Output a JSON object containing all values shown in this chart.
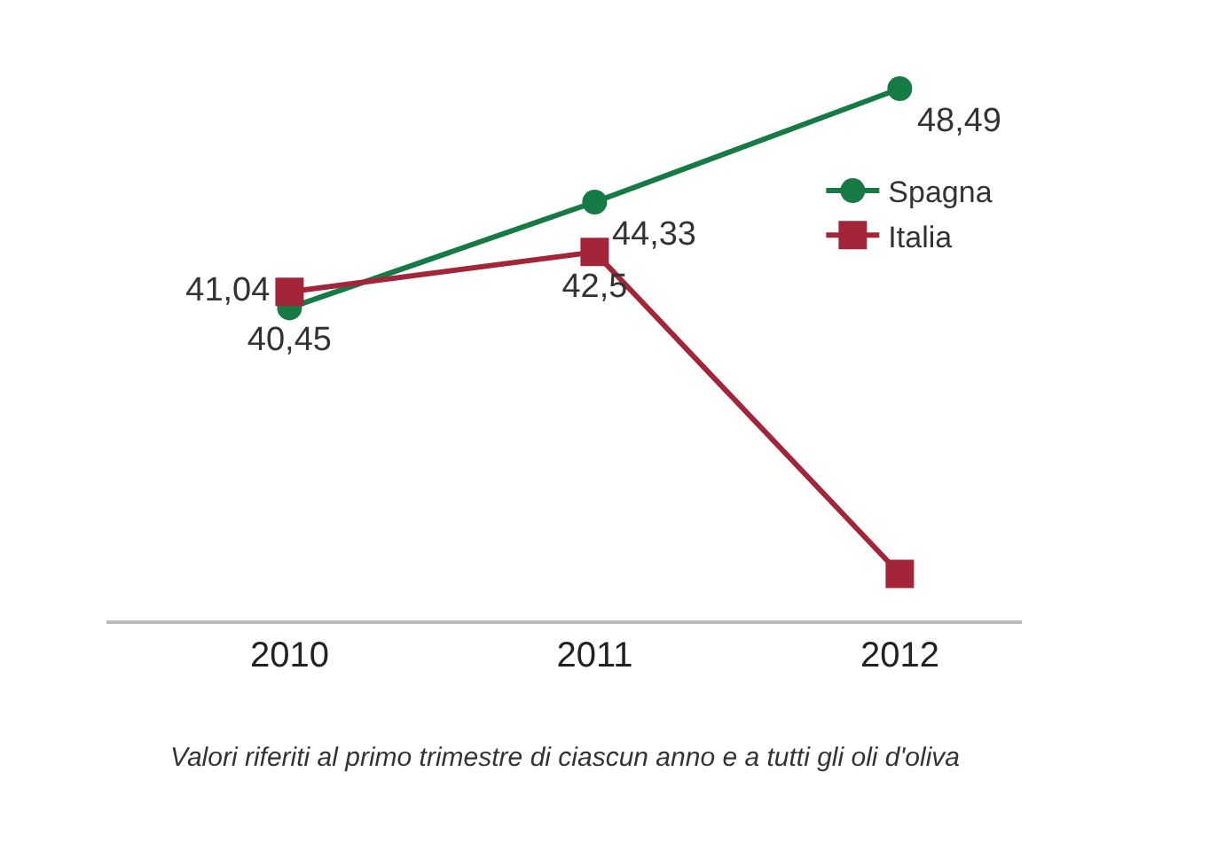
{
  "chart_data": {
    "type": "line",
    "categories": [
      "2010",
      "2011",
      "2012"
    ],
    "series": [
      {
        "name": "Spagna",
        "color": "#167a45",
        "marker": "circle",
        "values": [
          40.45,
          44.33,
          48.49
        ],
        "value_labels": [
          "40,45",
          "44,33",
          "48,49"
        ]
      },
      {
        "name": "Italia",
        "color": "#a3253a",
        "marker": "square",
        "values": [
          41.04,
          42.5,
          30.7
        ],
        "value_labels": [
          "41,04",
          "42,5",
          null
        ]
      }
    ],
    "tick_labels": "x",
    "legend": "top right",
    "annotations": [
      "Valori riferiti al primo trimestre di ciascun anno e a tutti gli oli d'oliva"
    ]
  }
}
